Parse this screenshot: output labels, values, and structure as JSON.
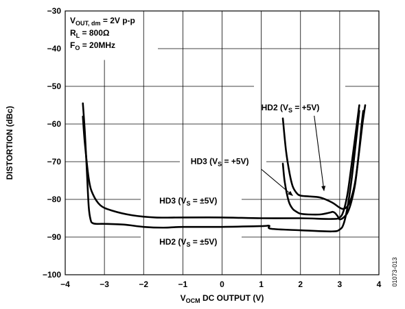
{
  "chart_data": {
    "type": "line",
    "xlim": [
      -4,
      4
    ],
    "ylim": [
      -100,
      -30
    ],
    "grid": true,
    "x_ticks": [
      "−4",
      "−3",
      "−2",
      "−1",
      "0",
      "1",
      "2",
      "3",
      "4"
    ],
    "y_ticks": [
      "−30",
      "−40",
      "−50",
      "−60",
      "−70",
      "−80",
      "−90",
      "−100"
    ],
    "xlabel": {
      "main": "V",
      "sub": "OCM",
      "rest": " DC OUTPUT (V)"
    },
    "ylabel": "DISTORTION (dBc)",
    "conditions": [
      {
        "main": "V",
        "sub": "OUT, dm",
        "rest": " = 2V p-p"
      },
      {
        "main": "R",
        "sub": "L",
        "rest": " = 800Ω"
      },
      {
        "main": "F",
        "sub": "O",
        "rest": " = 20MHz"
      }
    ],
    "figure_id": "01073-013",
    "series": [
      {
        "label": {
          "main": "HD2 (V",
          "sub": "S",
          "rest": " = +5V)"
        },
        "x": [
          1.55,
          1.63,
          1.72,
          1.8,
          1.9,
          2.0,
          2.2,
          2.5,
          2.8,
          3.0,
          3.1,
          3.2,
          3.3,
          3.4,
          3.5,
          3.58,
          3.65
        ],
        "y": [
          -58.5,
          -67,
          -73,
          -76.5,
          -78.3,
          -79.0,
          -79.2,
          -79.5,
          -80.8,
          -82.2,
          -82.5,
          -81.8,
          -79.5,
          -75,
          -67,
          -60,
          -55
        ]
      },
      {
        "label": {
          "main": "HD3 (V",
          "sub": "S",
          "rest": " = +5V)"
        },
        "x": [
          1.55,
          1.6,
          1.7,
          1.8,
          1.9,
          2.0,
          2.2,
          2.5,
          2.75,
          2.82,
          2.88,
          2.95,
          3.0,
          3.1,
          3.2,
          3.3,
          3.4,
          3.5,
          3.55,
          3.6
        ],
        "y": [
          -70.5,
          -75.5,
          -80.5,
          -82.5,
          -83.3,
          -83.8,
          -84.0,
          -84.0,
          -83.5,
          -83.3,
          -83.6,
          -84.5,
          -85.3,
          -84.8,
          -83.5,
          -80.5,
          -75.5,
          -66.5,
          -61,
          -56.5
        ]
      },
      {
        "label": {
          "main": "HD3 (V",
          "sub": "S",
          "rest": " = ±5V)"
        },
        "x": [
          -3.55,
          -3.5,
          -3.4,
          -3.3,
          -3.1,
          -2.8,
          -2.3,
          -1.7,
          -1.0,
          0,
          1.0,
          2.0,
          2.8,
          3.0,
          3.1,
          3.2,
          3.3,
          3.4,
          3.5
        ],
        "y": [
          -58,
          -65,
          -74.5,
          -78.5,
          -81.6,
          -83.0,
          -84.2,
          -84.8,
          -84.8,
          -84.8,
          -85.0,
          -85.0,
          -85.2,
          -84.8,
          -83.0,
          -78.5,
          -71,
          -63,
          -55
        ]
      },
      {
        "label": {
          "main": "HD2 (V",
          "sub": "S",
          "rest": " = ±5V)"
        },
        "x": [
          -3.55,
          -3.5,
          -3.45,
          -3.4,
          -3.35,
          -3.3,
          -3.2,
          -3.0,
          -2.5,
          -2.0,
          -1.5,
          -1.0,
          0,
          1.0,
          1.2,
          1.25,
          2.0,
          2.8,
          3.0,
          3.1,
          3.2,
          3.3,
          3.4,
          3.5
        ],
        "y": [
          -54.5,
          -62,
          -72,
          -82,
          -85.5,
          -86.3,
          -86.5,
          -86.5,
          -86.7,
          -87.3,
          -87.5,
          -87.3,
          -87.3,
          -87.1,
          -87.0,
          -87.8,
          -88.2,
          -88.5,
          -88.0,
          -86.5,
          -82,
          -75,
          -66,
          -56.5
        ]
      }
    ]
  }
}
